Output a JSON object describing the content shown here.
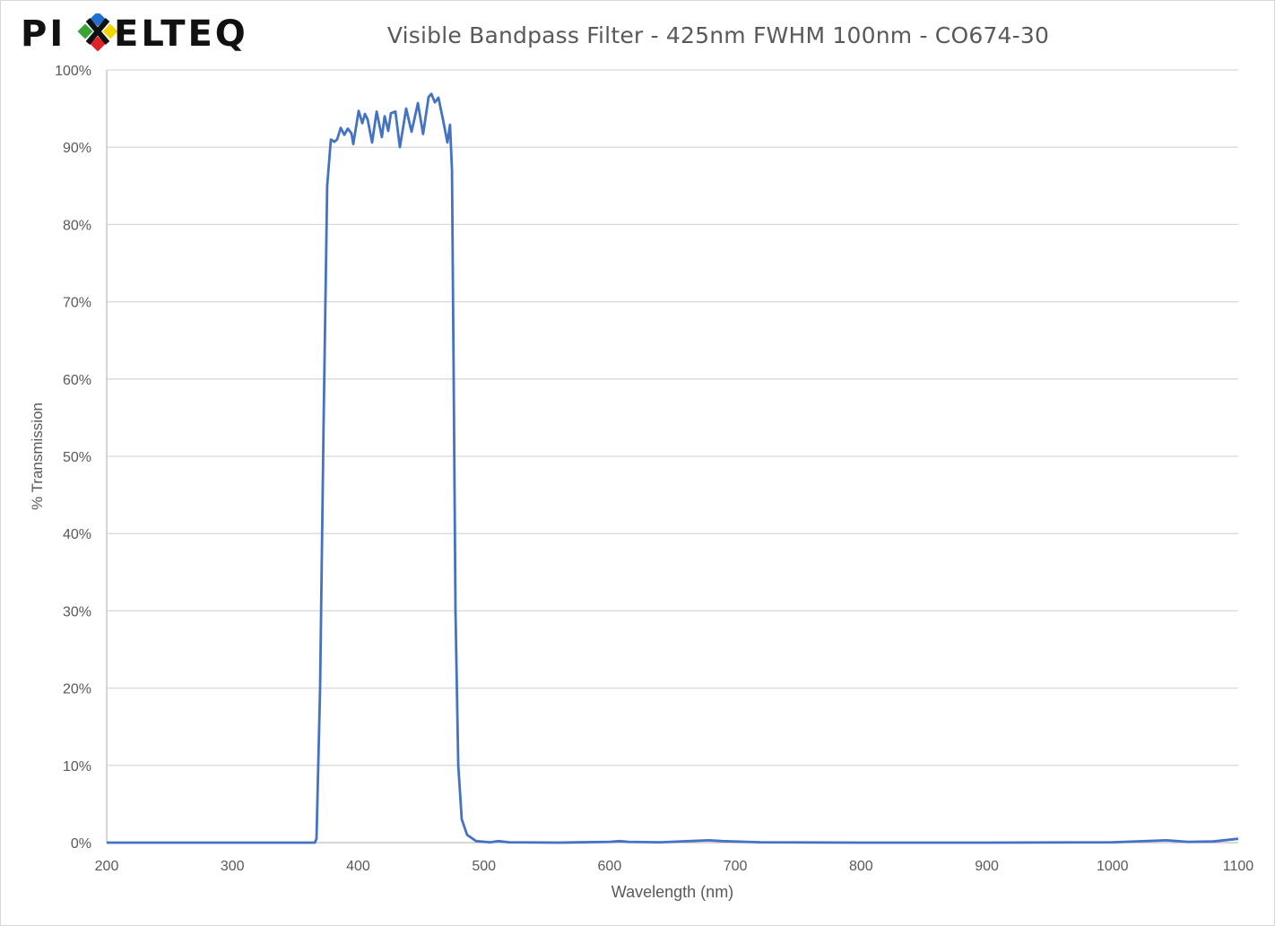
{
  "logo": {
    "text": "PIXELTEQ",
    "colors": [
      "#1f6fd0",
      "#f2d500",
      "#e0232a",
      "#3aa335"
    ]
  },
  "chart_data": {
    "type": "line",
    "title": "Visible Bandpass Filter - 425nm FWHM 100nm - CO674-30",
    "xlabel": "Wavelength (nm)",
    "ylabel": "% Transmission",
    "xlim": [
      200,
      1100
    ],
    "ylim": [
      0,
      100
    ],
    "xticks": [
      200,
      300,
      400,
      500,
      600,
      700,
      800,
      900,
      1000,
      1100
    ],
    "yticks": [
      "0%",
      "10%",
      "20%",
      "30%",
      "40%",
      "50%",
      "60%",
      "70%",
      "80%",
      "90%",
      "100%"
    ],
    "grid": "horizontal",
    "line_color": "#4472c4",
    "series": [
      {
        "x": [
          200,
          300,
          360,
          365.5,
          366.9,
          369.7,
          372.6,
          375.4,
          378.3,
          381.1,
          383.3,
          386.1,
          389.0,
          391.8,
          394.7,
          396.1,
          400.4,
          403.3,
          405.4,
          407.5,
          411.1,
          414.7,
          418.9,
          421.1,
          423.9,
          426.1,
          429.6,
          433.2,
          438.2,
          442.5,
          447.5,
          451.7,
          456.0,
          458.2,
          461.0,
          463.9,
          467.4,
          471.0,
          473.1,
          474.6,
          476.0,
          477.4,
          479.6,
          482.4,
          486.7,
          493.8,
          505,
          511.6,
          520,
          560,
          600,
          608,
          615,
          640,
          679,
          690,
          720,
          800,
          900,
          1000,
          1043,
          1060,
          1080,
          1100
        ],
        "y": [
          0,
          0,
          0,
          0,
          0.5,
          20,
          55,
          85,
          91.0,
          90.7,
          91.0,
          92.5,
          91.6,
          92.4,
          91.8,
          90.4,
          94.7,
          93.1,
          94.3,
          93.6,
          90.6,
          94.6,
          91.3,
          94.0,
          92.1,
          94.4,
          94.6,
          90.0,
          95.0,
          92.0,
          95.7,
          91.7,
          96.5,
          96.9,
          95.8,
          96.4,
          93.6,
          90.6,
          92.9,
          87,
          60,
          30,
          10,
          3,
          1,
          0.2,
          0.05,
          0.2,
          0.05,
          0,
          0.1,
          0.2,
          0.1,
          0.05,
          0.3,
          0.2,
          0.05,
          0,
          0,
          0.05,
          0.3,
          0.1,
          0.15,
          0.5
        ]
      }
    ]
  }
}
